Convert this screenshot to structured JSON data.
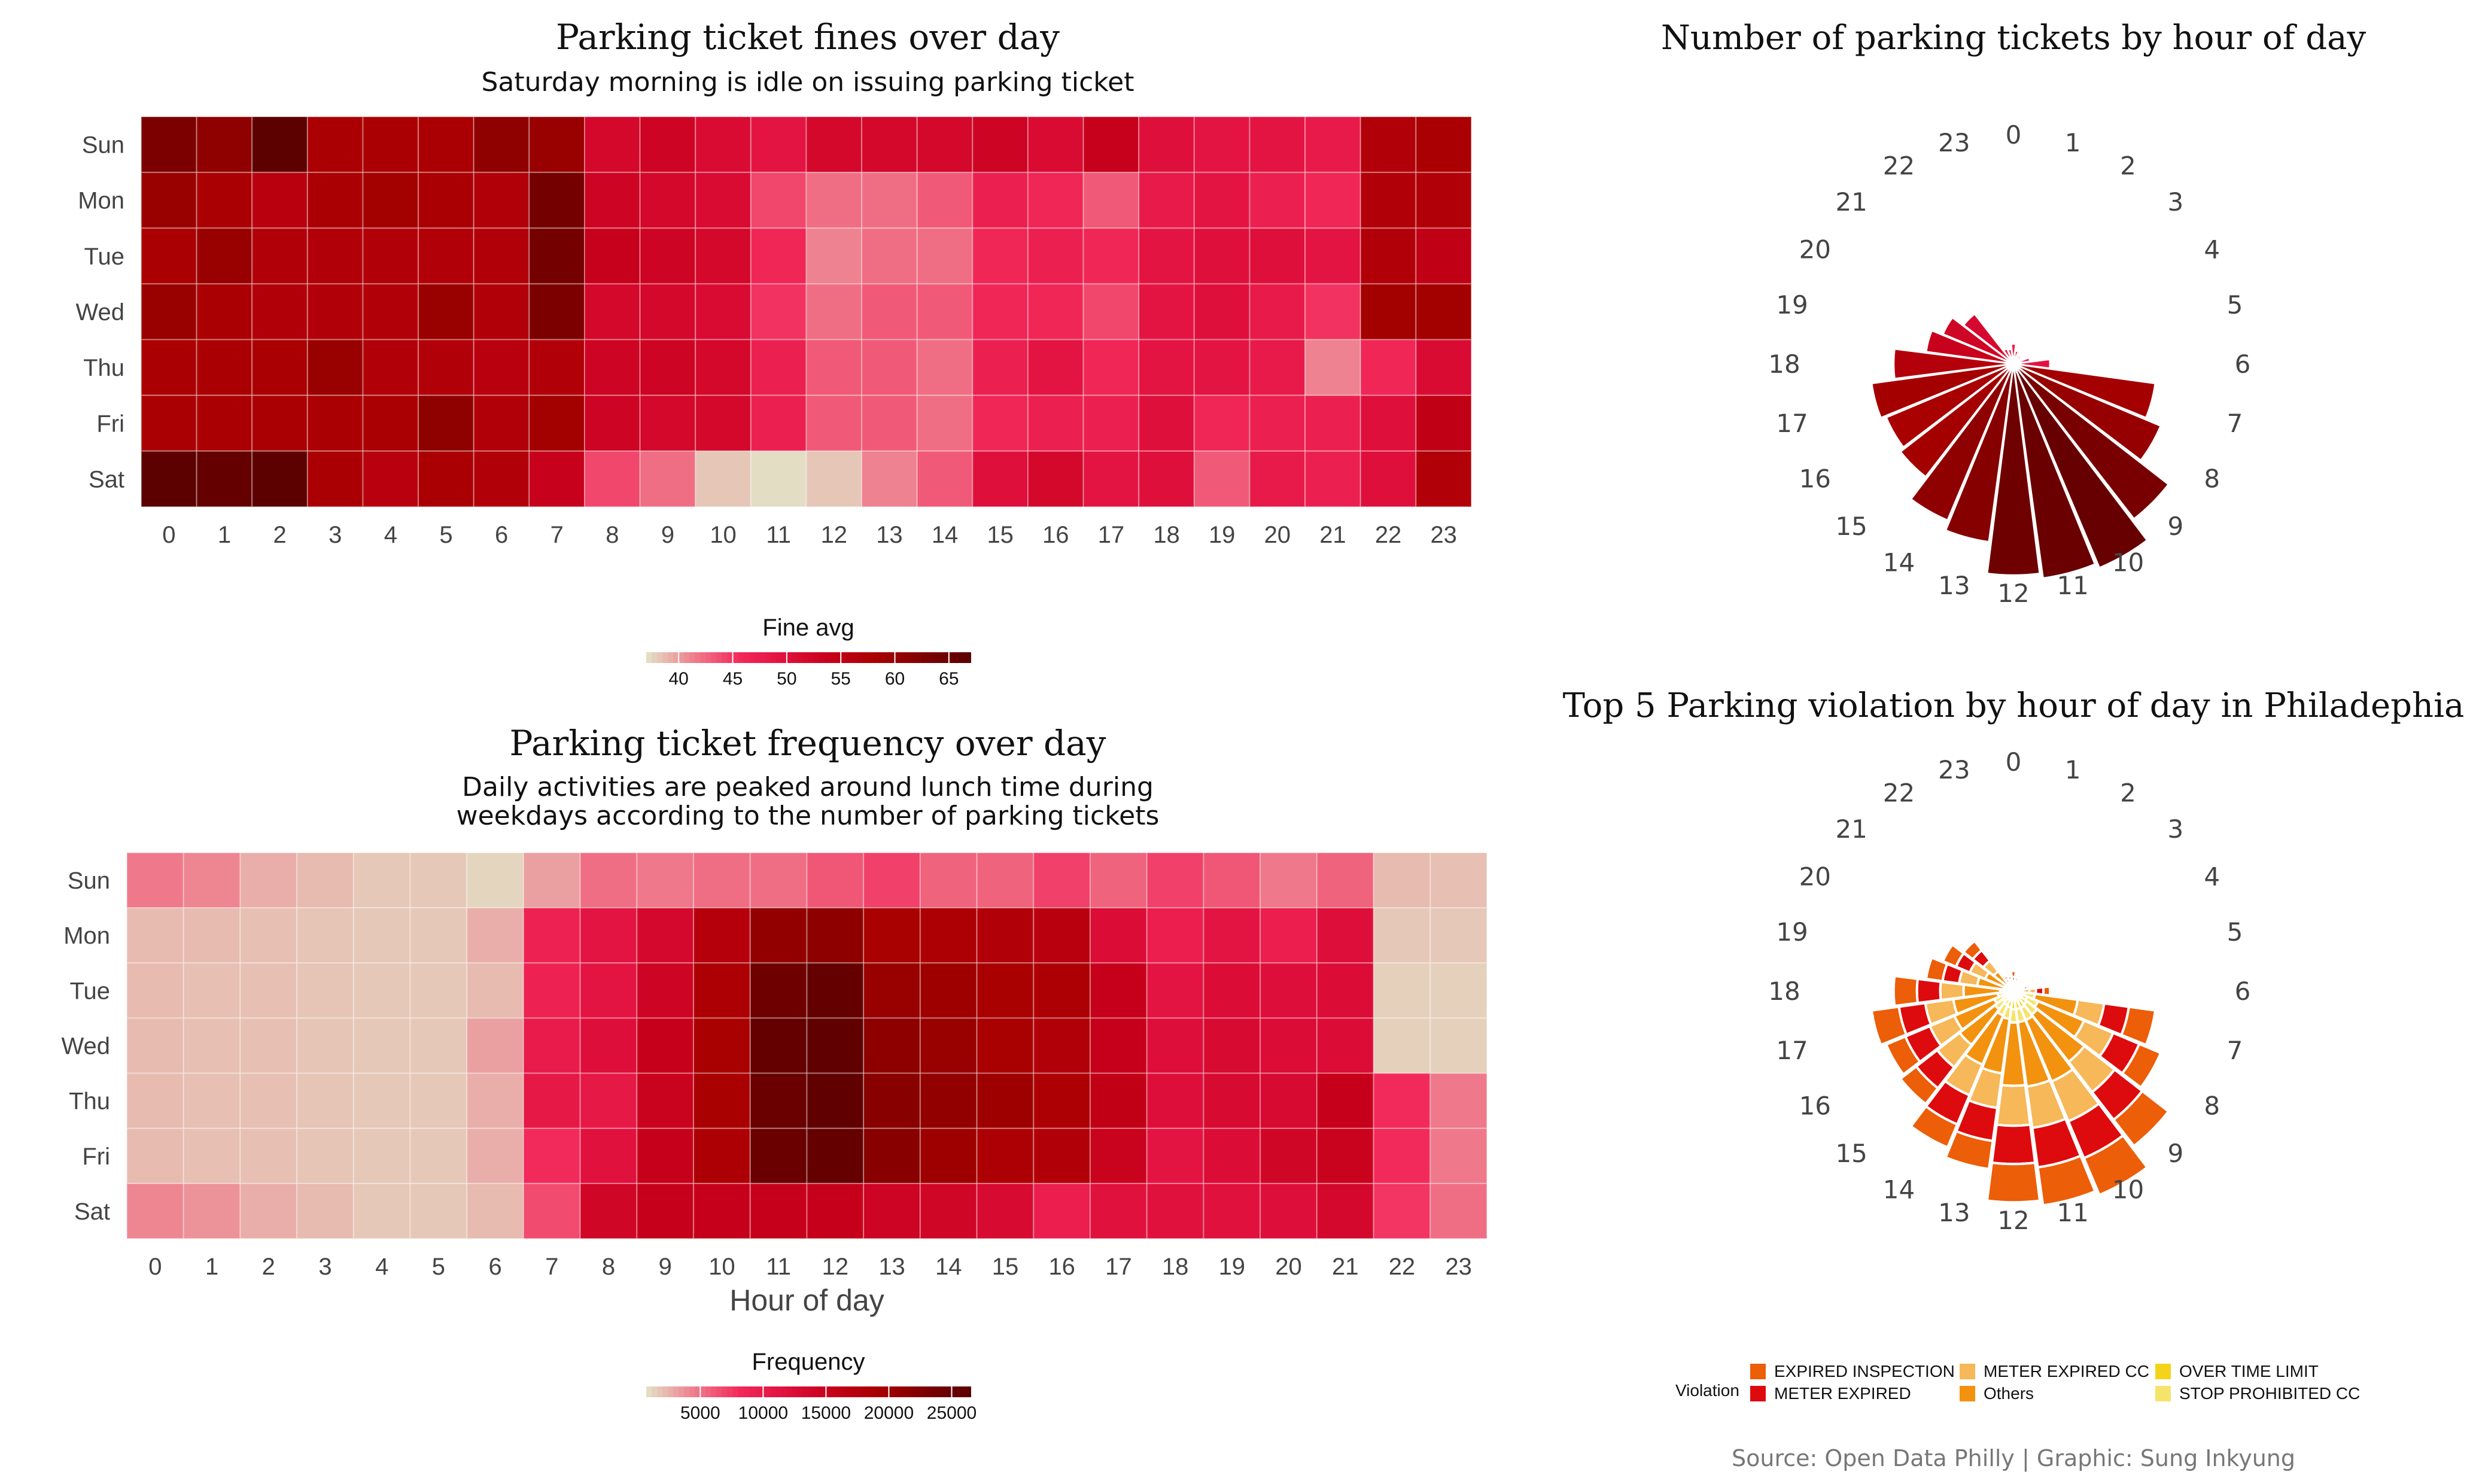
{
  "chart_data": [
    {
      "id": "fines",
      "type": "heatmap",
      "title": "Parking ticket fines over day",
      "subtitle": "Saturday morning is idle on issuing parking ticket",
      "xlabel": "",
      "ylabel": "",
      "x": [
        "0",
        "1",
        "2",
        "3",
        "4",
        "5",
        "6",
        "7",
        "8",
        "9",
        "10",
        "11",
        "12",
        "13",
        "14",
        "15",
        "16",
        "17",
        "18",
        "19",
        "20",
        "21",
        "22",
        "23"
      ],
      "y": [
        "Sun",
        "Mon",
        "Tue",
        "Wed",
        "Thu",
        "Fri",
        "Sat"
      ],
      "legend": {
        "title": "Fine avg",
        "ticks": [
          "40",
          "45",
          "50",
          "55",
          "60",
          "65"
        ],
        "tick_values": [
          40,
          45,
          50,
          55,
          60,
          65
        ],
        "range": [
          37,
          67
        ]
      },
      "values": [
        [
          63,
          61,
          67,
          58,
          58,
          58,
          61,
          60,
          52,
          53,
          51,
          49,
          52,
          52,
          52,
          53,
          51,
          54,
          50,
          49,
          49,
          48,
          57,
          58
        ],
        [
          60,
          58,
          56,
          58,
          59,
          58,
          57,
          64,
          53,
          52,
          51,
          44,
          42,
          42,
          43,
          47,
          46,
          43,
          48,
          49,
          47,
          46,
          57,
          57
        ],
        [
          58,
          60,
          57,
          57,
          57,
          57,
          57,
          64,
          54,
          53,
          52,
          46,
          41,
          42,
          42,
          46,
          47,
          46,
          49,
          50,
          50,
          49,
          57,
          55
        ],
        [
          60,
          58,
          57,
          57,
          57,
          60,
          57,
          63,
          52,
          52,
          51,
          45,
          42,
          43,
          43,
          46,
          46,
          44,
          49,
          50,
          48,
          45,
          59,
          59
        ],
        [
          58,
          58,
          58,
          60,
          57,
          57,
          56,
          57,
          53,
          53,
          52,
          47,
          43,
          43,
          42,
          47,
          49,
          46,
          49,
          49,
          48,
          41,
          46,
          51
        ],
        [
          58,
          58,
          58,
          58,
          58,
          61,
          57,
          59,
          53,
          52,
          52,
          47,
          43,
          43,
          42,
          46,
          47,
          47,
          50,
          46,
          47,
          47,
          50,
          55
        ],
        [
          67,
          66,
          68,
          58,
          56,
          58,
          57,
          54,
          44,
          42,
          38,
          36,
          38,
          41,
          43,
          50,
          52,
          49,
          50,
          43,
          48,
          47,
          50,
          57
        ]
      ]
    },
    {
      "id": "frequency",
      "type": "heatmap",
      "title": "Parking ticket frequency over day",
      "subtitle": "Daily activities are peaked around lunch time during weekdays according to the number of parking tickets",
      "xlabel": "Hour of day",
      "ylabel": "",
      "x": [
        "0",
        "1",
        "2",
        "3",
        "4",
        "5",
        "6",
        "7",
        "8",
        "9",
        "10",
        "11",
        "12",
        "13",
        "14",
        "15",
        "16",
        "17",
        "18",
        "19",
        "20",
        "21",
        "22",
        "23"
      ],
      "y": [
        "Sun",
        "Mon",
        "Tue",
        "Wed",
        "Thu",
        "Fri",
        "Sat"
      ],
      "legend": {
        "title": "Frequency",
        "ticks": [
          "5000",
          "10000",
          "15000",
          "20000",
          "25000"
        ],
        "tick_values": [
          5000,
          10000,
          15000,
          20000,
          25000
        ],
        "range": [
          700,
          26500
        ]
      },
      "values": [
        [
          4500,
          4000,
          2500,
          2000,
          1500,
          1500,
          1000,
          3000,
          5000,
          4500,
          5000,
          5000,
          6000,
          7000,
          5500,
          5500,
          7000,
          5500,
          7000,
          6000,
          4500,
          5500,
          2000,
          1800
        ],
        [
          2000,
          2000,
          1800,
          1600,
          1500,
          1500,
          2500,
          9000,
          11000,
          13500,
          17500,
          21000,
          21500,
          19000,
          18500,
          18000,
          17000,
          12500,
          9500,
          11000,
          9500,
          12000,
          1500,
          1500
        ],
        [
          2000,
          1800,
          1800,
          1600,
          1500,
          1500,
          2000,
          9000,
          11000,
          14500,
          18500,
          24500,
          25500,
          20500,
          20000,
          19000,
          18500,
          15500,
          11000,
          12500,
          12000,
          12500,
          1200,
          1200
        ],
        [
          2000,
          1800,
          1800,
          1600,
          1500,
          1500,
          3000,
          10000,
          12000,
          15500,
          19000,
          25500,
          26000,
          21500,
          20500,
          19000,
          18000,
          15500,
          12000,
          13000,
          12500,
          12500,
          1200,
          1200
        ],
        [
          2000,
          1800,
          1800,
          1600,
          1500,
          1500,
          2500,
          10500,
          10500,
          15000,
          19000,
          25000,
          26000,
          22000,
          21000,
          20000,
          18500,
          16000,
          12000,
          13000,
          13000,
          15500,
          8000,
          4500
        ],
        [
          2000,
          1800,
          1800,
          1600,
          1500,
          1500,
          2500,
          8000,
          11500,
          15500,
          18500,
          25000,
          25500,
          22000,
          20000,
          18500,
          18000,
          15000,
          11000,
          12500,
          14000,
          15000,
          8000,
          4500
        ],
        [
          4000,
          3500,
          2500,
          2000,
          1500,
          1500,
          2000,
          6500,
          14000,
          15500,
          15500,
          15500,
          15500,
          14500,
          14000,
          13000,
          9500,
          11500,
          11500,
          11500,
          12000,
          13500,
          7500,
          5000
        ]
      ]
    },
    {
      "id": "polar-count",
      "type": "bar",
      "subtype": "polar",
      "title": "Number of parking tickets by hour of day",
      "categories": [
        "0",
        "1",
        "2",
        "3",
        "4",
        "5",
        "6",
        "7",
        "8",
        "9",
        "10",
        "11",
        "12",
        "13",
        "14",
        "15",
        "16",
        "17",
        "18",
        "19",
        "20",
        "21",
        "22",
        "23"
      ],
      "values": [
        120,
        80,
        60,
        60,
        50,
        100,
        220,
        860,
        960,
        1180,
        1330,
        1300,
        1270,
        1080,
        1020,
        860,
        830,
        860,
        720,
        530,
        460,
        380,
        100,
        90
      ],
      "ylim": [
        0,
        1420
      ]
    },
    {
      "id": "polar-violation",
      "type": "bar",
      "subtype": "polar-stacked",
      "title": "Top 5 Parking violation by hour of day in Philadephia",
      "categories": [
        "0",
        "1",
        "2",
        "3",
        "4",
        "5",
        "6",
        "7",
        "8",
        "9",
        "10",
        "11",
        "12",
        "13",
        "14",
        "15",
        "16",
        "17",
        "18",
        "19",
        "20",
        "21",
        "22",
        "23"
      ],
      "legend": {
        "title": "Violation",
        "position": "bottom"
      },
      "series": [
        {
          "name": "OVER TIME LIMIT",
          "color": "#f3d41a",
          "values": [
            5,
            5,
            5,
            5,
            5,
            5,
            10,
            70,
            90,
            100,
            110,
            110,
            110,
            100,
            90,
            80,
            70,
            50,
            40,
            30,
            20,
            20,
            5,
            5
          ]
        },
        {
          "name": "STOP PROHIBITED CC",
          "color": "#f6e36c",
          "values": [
            5,
            5,
            5,
            5,
            5,
            10,
            15,
            60,
            70,
            80,
            80,
            80,
            80,
            70,
            70,
            60,
            55,
            45,
            40,
            30,
            25,
            20,
            5,
            5
          ]
        },
        {
          "name": "Others",
          "color": "#f2920f",
          "values": [
            30,
            20,
            15,
            15,
            15,
            30,
            70,
            260,
            300,
            360,
            400,
            390,
            380,
            330,
            320,
            270,
            260,
            270,
            220,
            160,
            140,
            110,
            30,
            25
          ]
        },
        {
          "name": "METER EXPIRED CC",
          "color": "#f6b858",
          "values": [
            20,
            15,
            10,
            10,
            8,
            20,
            40,
            160,
            190,
            230,
            260,
            250,
            240,
            210,
            200,
            170,
            160,
            170,
            140,
            110,
            100,
            80,
            20,
            20
          ]
        },
        {
          "name": "METER EXPIRED",
          "color": "#dd0b0e",
          "values": [
            25,
            15,
            10,
            10,
            8,
            20,
            45,
            150,
            170,
            210,
            240,
            240,
            230,
            200,
            190,
            160,
            160,
            160,
            140,
            100,
            90,
            80,
            20,
            15
          ]
        },
        {
          "name": "EXPIRED INSPECTION",
          "color": "#ec5e08",
          "values": [
            35,
            20,
            15,
            15,
            9,
            15,
            40,
            160,
            140,
            200,
            240,
            230,
            230,
            170,
            150,
            120,
            125,
            165,
            140,
            100,
            85,
            70,
            20,
            20
          ]
        }
      ],
      "ylim": [
        0,
        1420
      ]
    }
  ],
  "legend_order": [
    {
      "label": "EXPIRED INSPECTION",
      "color": "#ec5e08"
    },
    {
      "label": "METER EXPIRED",
      "color": "#dd0b0e"
    },
    {
      "label": "METER EXPIRED CC",
      "color": "#f6b858"
    },
    {
      "label": "Others",
      "color": "#f2920f"
    },
    {
      "label": "OVER TIME LIMIT",
      "color": "#f3d41a"
    },
    {
      "label": "STOP PROHIBITED CC",
      "color": "#f6e36c"
    }
  ],
  "source": "Source: Open Data Philly | Graphic: Sung Inkyung"
}
